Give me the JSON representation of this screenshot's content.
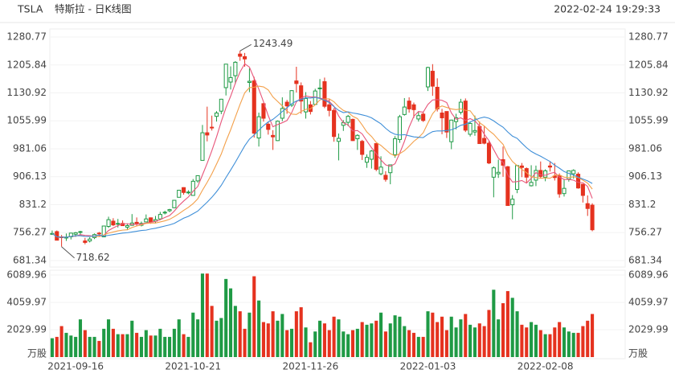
{
  "header": {
    "symbol": "TSLA",
    "title": "特斯拉 - 日K线图",
    "timestamp": "2022-02-24 19:29:33"
  },
  "chart_data": {
    "type": "candlestick",
    "categories": [
      null,
      null,
      null,
      null,
      null,
      "2021-09-16",
      null,
      null,
      null,
      null,
      null,
      null,
      null,
      null,
      null,
      null,
      null,
      null,
      null,
      null,
      null,
      null,
      null,
      null,
      null,
      null,
      null,
      null,
      null,
      null,
      "2021-10-21",
      null,
      null,
      null,
      null,
      null,
      null,
      null,
      null,
      null,
      null,
      null,
      null,
      null,
      null,
      null,
      null,
      null,
      null,
      null,
      null,
      null,
      null,
      null,
      null,
      "2021-11-26",
      null,
      null,
      null,
      null,
      null,
      null,
      null,
      null,
      null,
      null,
      null,
      null,
      null,
      null,
      null,
      null,
      null,
      null,
      null,
      null,
      null,
      null,
      null,
      null,
      "2022-01-03",
      null,
      null,
      null,
      null,
      null,
      null,
      null,
      null,
      null,
      null,
      null,
      null,
      null,
      null,
      null,
      null,
      null,
      null,
      null,
      null,
      null,
      null,
      null,
      null,
      "2022-02-08",
      null,
      null,
      null,
      null,
      null,
      null,
      null,
      null,
      null,
      null
    ],
    "open": [
      753,
      759,
      745,
      743,
      745,
      752,
      757,
      734,
      734,
      743,
      755,
      745,
      773,
      787,
      779,
      781,
      771,
      776,
      784,
      776,
      785,
      796,
      787,
      793,
      810,
      815,
      823,
      851,
      877,
      865,
      856,
      895,
      950,
      1024,
      1039,
      1068,
      1082,
      1145,
      1160,
      1177,
      1235,
      1228,
      1159,
      1163,
      1010,
      1102,
      1047,
      1017,
      1003,
      1063,
      1106,
      1098,
      1163,
      1150,
      1080,
      1099,
      1100,
      1144,
      1161,
      1099,
      1084,
      1001,
      1044,
      1052,
      1060,
      1008,
      1001,
      945,
      953,
      995,
      914,
      910,
      917,
      965,
      1006,
      1073,
      1109,
      1099,
      1061,
      1074,
      1147,
      1189,
      1146,
      1077,
      1081,
      1000,
      1054,
      1079,
      1109,
      1020,
      1026,
      1041,
      1009,
      996,
      905,
      914,
      952,
      933,
      831,
      872,
      935,
      928,
      882,
      897,
      923,
      905,
      935,
      908,
      909,
      861,
      900,
      914,
      913,
      886,
      834,
      830
    ],
    "high": [
      762,
      762,
      750,
      754,
      756,
      758,
      761,
      742,
      744,
      754,
      758,
      774,
      799,
      795,
      793,
      789,
      781,
      806,
      797,
      786,
      805,
      797,
      801,
      812,
      815,
      820,
      843,
      871,
      878,
      870,
      900,
      910,
      1045,
      1094,
      1070,
      1082,
      1115,
      1208,
      1202,
      1216,
      1243.49,
      1238,
      1197,
      1174,
      1078,
      1104,
      1054,
      1031,
      1057,
      1119,
      1112,
      1138,
      1201,
      1159,
      1133,
      1109,
      1142,
      1168,
      1172,
      1114,
      1090,
      1022,
      1058,
      1072,
      1062,
      1020,
      1005,
      966,
      978,
      995,
      961,
      921,
      939,
      1015,
      1072,
      1117,
      1119,
      1105,
      1081,
      1081,
      1201,
      1208,
      1170,
      1088,
      1080,
      1059,
      1075,
      1115,
      1116,
      1053,
      1070,
      1054,
      1041,
      1004,
      934,
      952,
      987,
      935,
      857,
      937,
      943,
      931,
      937,
      936,
      947,
      926,
      946,
      943,
      915,
      898,
      923,
      926,
      918,
      886,
      856,
      835
    ],
    "low": [
      750,
      736,
      718.62,
      734,
      738,
      745,
      750,
      725,
      730,
      739,
      747,
      744,
      769,
      774,
      770,
      775,
      763,
      775,
      774,
      773,
      785,
      780,
      781,
      790,
      805,
      811,
      822,
      851,
      858,
      859,
      855,
      890,
      950,
      1001,
      1030,
      1054,
      1074,
      1124,
      1140,
      1155,
      1217,
      1201,
      1133,
      1011,
      987,
      1054,
      1019,
      978,
      1002,
      1055,
      1075,
      1093,
      1132,
      1075,
      1062,
      1073,
      1100,
      1118,
      1090,
      1068,
      1000,
      950,
      1029,
      1042,
      1002,
      978,
      951,
      930,
      928,
      921,
      910,
      893,
      886,
      957,
      997,
      1070,
      1078,
      1064,
      1054,
      1053,
      1136,
      1123,
      1081,
      1020,
      1010,
      980,
      1033,
      1073,
      1026,
      1014,
      1016,
      995,
      993,
      940,
      851,
      903,
      906,
      829,
      792,
      862,
      905,
      889,
      880,
      881,
      902,
      894,
      920,
      896,
      850,
      853,
      893,
      901,
      874,
      837,
      801,
      760
    ],
    "close": [
      754,
      736,
      743,
      744,
      755,
      756,
      759,
      730,
      739,
      751,
      753,
      774,
      791,
      777,
      781,
      775,
      775,
      782,
      780,
      781,
      793,
      785,
      791,
      805,
      811,
      818,
      843,
      870,
      864,
      865,
      894,
      909,
      1024,
      1018,
      1037,
      1077,
      1114,
      1208,
      1172,
      1213,
      1229,
      1222,
      1162,
      1023,
      1067,
      1063,
      1033,
      1013,
      1055,
      1089,
      1096,
      1137,
      1156,
      1109,
      1116,
      1081,
      1136,
      1144,
      1095,
      1084,
      1014,
      1009,
      1051,
      1068,
      1003,
      1017,
      966,
      958,
      975,
      926,
      932,
      899,
      938,
      1008,
      1067,
      1093,
      1088,
      1086,
      1070,
      1057,
      1199,
      1149,
      1088,
      1064,
      1026,
      1058,
      1064,
      1106,
      1031,
      1049,
      1030,
      995,
      996,
      943,
      930,
      918,
      937,
      829,
      846,
      936,
      931,
      905,
      891,
      923,
      907,
      922,
      932,
      904,
      860,
      875,
      922,
      923,
      876,
      856,
      821,
      764
    ],
    "volume": [
      1400,
      1500,
      2300,
      1800,
      1600,
      1500,
      2800,
      2000,
      1500,
      1500,
      1200,
      2100,
      2800,
      2100,
      1700,
      1700,
      1700,
      2700,
      1800,
      1500,
      2000,
      1600,
      1600,
      2100,
      1500,
      1500,
      2100,
      2800,
      1700,
      1500,
      3300,
      2800,
      6200,
      6200,
      3800,
      2700,
      2900,
      5800,
      5100,
      3800,
      3400,
      2100,
      3300,
      6000,
      4200,
      2600,
      2500,
      3400,
      2700,
      3200,
      2000,
      2100,
      3400,
      3700,
      2200,
      1100,
      1900,
      2700,
      2500,
      2000,
      3000,
      2800,
      1900,
      1700,
      2000,
      2100,
      2600,
      2400,
      2500,
      2700,
      3300,
      1900,
      2500,
      3100,
      3000,
      2300,
      2000,
      1800,
      1500,
      1500,
      3400,
      3300,
      2600,
      3000,
      2000,
      3000,
      2200,
      2800,
      3200,
      2400,
      2200,
      2500,
      2300,
      3500,
      5000,
      2800,
      4000,
      4900,
      4400,
      3400,
      2400,
      2200,
      2600,
      2400,
      2000,
      1700,
      1700,
      2200,
      2600,
      2200,
      1900,
      1800,
      1800,
      2300,
      2700,
      3200
    ],
    "up_color": "#1f9a45",
    "down_color": "#e5321f",
    "series": [
      {
        "color": "#e8557a",
        "values": [
          754,
          745,
          744,
          744,
          746,
          747,
          751,
          749,
          748,
          747,
          746,
          749,
          762,
          769,
          775,
          780,
          780,
          778,
          779,
          779,
          782,
          784,
          786,
          791,
          797,
          802,
          814,
          829,
          841,
          852,
          867,
          880,
          911,
          942,
          976,
          1013,
          1054,
          1091,
          1122,
          1157,
          1187,
          1209,
          1200,
          1170,
          1141,
          1107,
          1070,
          1040,
          1046,
          1051,
          1057,
          1078,
          1107,
          1117,
          1123,
          1120,
          1120,
          1117,
          1114,
          1108,
          1095,
          1069,
          1051,
          1045,
          1029,
          1030,
          1021,
          1002,
          984,
          968,
          951,
          938,
          934,
          941,
          969,
          1001,
          1039,
          1068,
          1081,
          1079,
          1100,
          1112,
          1113,
          1111,
          1105,
          1077,
          1060,
          1064,
          1057,
          1062,
          1056,
          1042,
          1020,
          1003,
          979,
          956,
          945,
          911,
          892,
          893,
          896,
          889,
          902,
          917,
          911,
          910,
          915,
          918,
          905,
          899,
          899,
          897,
          891,
          890,
          880,
          848
        ]
      },
      {
        "color": "#f3a04a",
        "values": [
          754,
          745,
          744,
          744,
          746,
          748,
          748,
          746,
          746,
          747,
          746,
          750,
          755,
          758,
          761,
          763,
          764,
          770,
          774,
          777,
          781,
          782,
          782,
          785,
          788,
          792,
          799,
          807,
          816,
          824,
          834,
          847,
          870,
          891,
          914,
          940,
          967,
          1001,
          1032,
          1066,
          1100,
          1131,
          1145,
          1146,
          1149,
          1147,
          1139,
          1120,
          1108,
          1096,
          1082,
          1074,
          1073,
          1081,
          1087,
          1088,
          1099,
          1112,
          1115,
          1115,
          1107,
          1094,
          1084,
          1079,
          1068,
          1062,
          1045,
          1026,
          1014,
          998,
          990,
          979,
          968,
          962,
          968,
          976,
          988,
          1001,
          1011,
          1024,
          1050,
          1075,
          1090,
          1096,
          1092,
          1088,
          1086,
          1088,
          1084,
          1083,
          1066,
          1051,
          1042,
          1030,
          1020,
          1006,
          993,
          965,
          947,
          936,
          926,
          917,
          906,
          904,
          902,
          903,
          902,
          910,
          911,
          905,
          904,
          906,
          904,
          897,
          889,
          873
        ]
      },
      {
        "color": "#3f8fd8",
        "values": [
          754,
          745,
          744,
          744,
          746,
          748,
          748,
          746,
          746,
          747,
          750,
          747,
          749,
          751,
          753,
          755,
          756,
          758,
          760,
          762,
          763,
          766,
          768,
          771,
          774,
          777,
          781,
          788,
          795,
          800,
          807,
          814,
          826,
          838,
          851,
          866,
          883,
          904,
          924,
          945,
          967,
          989,
          1007,
          1018,
          1031,
          1043,
          1053,
          1060,
          1070,
          1081,
          1091,
          1102,
          1109,
          1113,
          1118,
          1117,
          1119,
          1116,
          1111,
          1105,
          1094,
          1084,
          1078,
          1080,
          1077,
          1075,
          1072,
          1069,
          1064,
          1056,
          1048,
          1036,
          1026,
          1020,
          1018,
          1019,
          1016,
          1013,
          1012,
          1011,
          1020,
          1027,
          1029,
          1029,
          1030,
          1032,
          1037,
          1044,
          1047,
          1053,
          1058,
          1063,
          1066,
          1063,
          1056,
          1047,
          1039,
          1026,
          1015,
          1009,
          996,
          984,
          974,
          967,
          961,
          954,
          947,
          937,
          929,
          920,
          915,
          911,
          905,
          900,
          895,
          888
        ]
      }
    ],
    "ylim": [
      681.34,
      1280.77
    ],
    "yticks": [
      681.34,
      756.27,
      831.2,
      906.13,
      981.06,
      1055.99,
      1130.92,
      1205.84,
      1280.77
    ],
    "volume_unit": "万股",
    "volume_ylim": [
      0,
      6089.96
    ],
    "volume_yticks": [
      2029.99,
      4059.97,
      6089.96
    ]
  }
}
